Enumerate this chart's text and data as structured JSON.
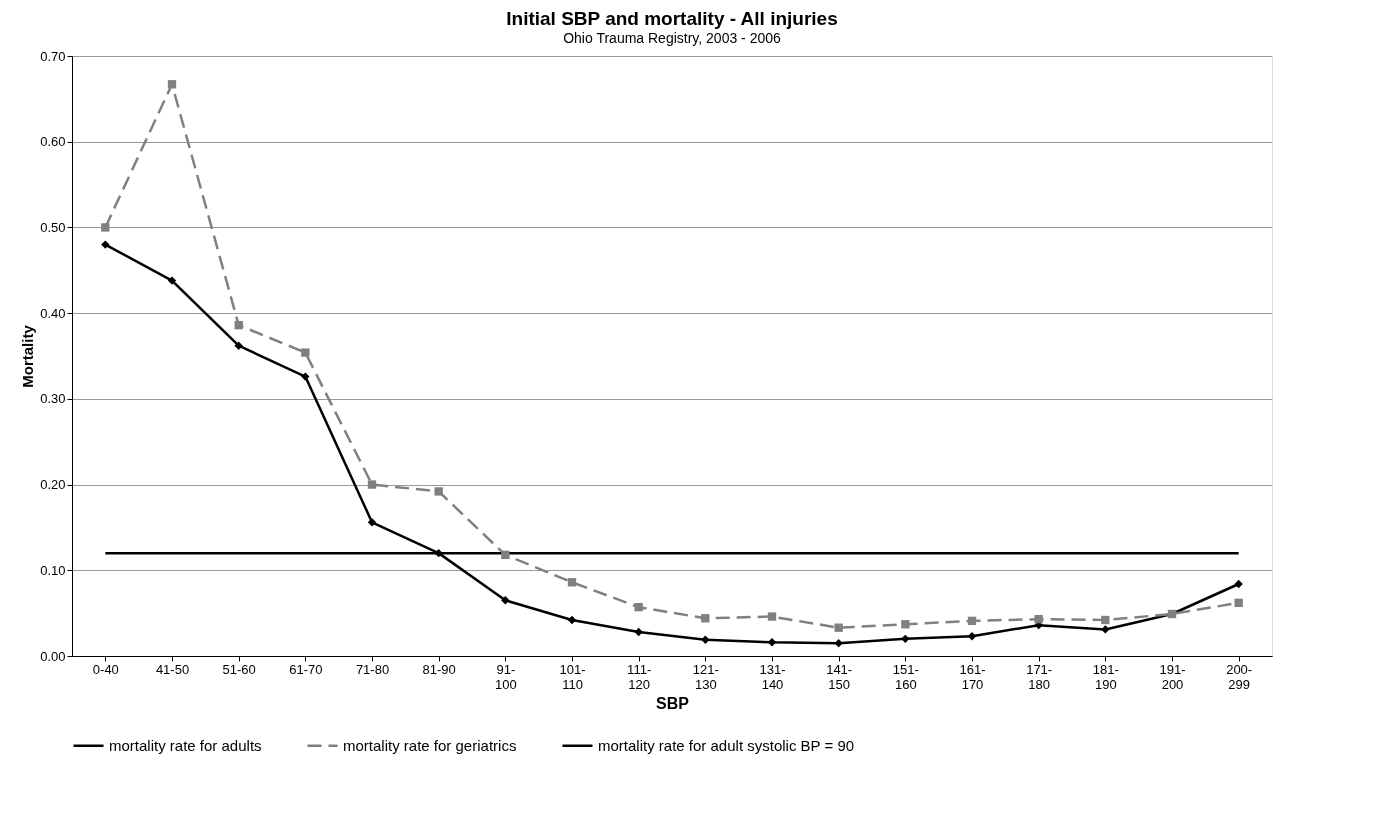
{
  "chart_data": {
    "type": "line",
    "title": "Initial SBP and mortality - All injuries",
    "subtitle": "Ohio Trauma Registry, 2003 - 2006",
    "xlabel": "SBP",
    "ylabel": "Mortality",
    "categories": [
      "0-40",
      "41-50",
      "51-60",
      "61-70",
      "71-80",
      "81-90",
      "91-100",
      "101-110",
      "111-120",
      "121-130",
      "131-140",
      "141-150",
      "151-160",
      "161-170",
      "171-180",
      "181-190",
      "191-200",
      "200-299"
    ],
    "series": [
      {
        "name": "mortality rate for adults",
        "color": "#000000",
        "marker": "diamond",
        "line_style": "solid",
        "values": [
          0.48,
          0.438,
          0.362,
          0.326,
          0.156,
          0.12,
          0.065,
          0.042,
          0.028,
          0.019,
          0.016,
          0.015,
          0.02,
          0.023,
          0.036,
          0.031,
          0.049,
          0.084
        ]
      },
      {
        "name": "mortality rate for geriatrics",
        "color": "#808080",
        "marker": "square",
        "line_style": "dashed",
        "values": [
          0.5,
          0.667,
          0.386,
          0.354,
          0.2,
          0.192,
          0.118,
          0.086,
          0.057,
          0.044,
          0.046,
          0.033,
          0.037,
          0.041,
          0.043,
          0.042,
          0.049,
          0.062
        ]
      },
      {
        "name": "mortality rate for adult systolic BP = 90",
        "color": "#000000",
        "marker": "none",
        "line_style": "solid",
        "values": [
          0.12,
          0.12,
          0.12,
          0.12,
          0.12,
          0.12,
          0.12,
          0.12,
          0.12,
          0.12,
          0.12,
          0.12,
          0.12,
          0.12,
          0.12,
          0.12,
          0.12,
          0.12
        ]
      }
    ],
    "ylim": [
      0,
      0.7
    ],
    "yticks": [
      {
        "value": 0,
        "label": "0.00"
      },
      {
        "value": 0.1,
        "label": "0.10"
      },
      {
        "value": 0.2,
        "label": "0.20"
      },
      {
        "value": 0.3,
        "label": "0.30"
      },
      {
        "value": 0.4,
        "label": "0.40"
      },
      {
        "value": 0.5,
        "label": "0.50"
      },
      {
        "value": 0.6,
        "label": "0.60"
      },
      {
        "value": 0.7,
        "label": "0.70"
      }
    ],
    "grid": "y",
    "legend": "bottom"
  }
}
